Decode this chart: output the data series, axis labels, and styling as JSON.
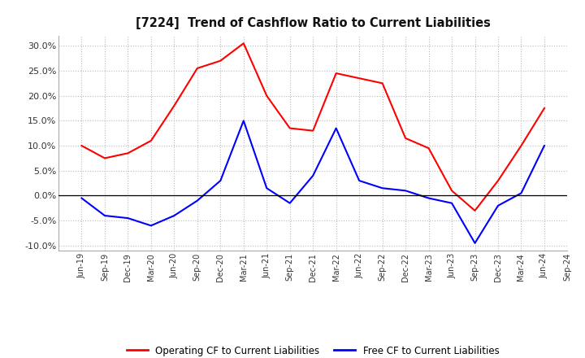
{
  "title": "[7224]  Trend of Cashflow Ratio to Current Liabilities",
  "x_labels": [
    "Jun-19",
    "Sep-19",
    "Dec-19",
    "Mar-20",
    "Jun-20",
    "Sep-20",
    "Dec-20",
    "Mar-21",
    "Jun-21",
    "Sep-21",
    "Dec-21",
    "Mar-22",
    "Jun-22",
    "Sep-22",
    "Dec-22",
    "Mar-23",
    "Jun-23",
    "Sep-23",
    "Dec-23",
    "Mar-24",
    "Jun-24",
    "Sep-24"
  ],
  "operating_cf": [
    10.0,
    7.5,
    8.5,
    11.0,
    18.0,
    25.5,
    27.0,
    30.5,
    20.0,
    13.5,
    13.0,
    24.5,
    23.5,
    22.5,
    11.5,
    9.5,
    1.0,
    -3.0,
    3.0,
    10.0,
    17.5,
    null
  ],
  "free_cf": [
    -0.5,
    -4.0,
    -4.5,
    -6.0,
    -4.0,
    -1.0,
    3.0,
    15.0,
    1.5,
    -1.5,
    4.0,
    13.5,
    3.0,
    1.5,
    1.0,
    -0.5,
    -1.5,
    -9.5,
    -2.0,
    0.5,
    10.0,
    null
  ],
  "ylim": [
    -11.0,
    32.0
  ],
  "yticks": [
    -10.0,
    -5.0,
    0.0,
    5.0,
    10.0,
    15.0,
    20.0,
    25.0,
    30.0
  ],
  "operating_color": "#ff0000",
  "free_color": "#0000ff",
  "background_color": "#ffffff",
  "grid_color": "#aaaaaa",
  "legend_labels": [
    "Operating CF to Current Liabilities",
    "Free CF to Current Liabilities"
  ]
}
